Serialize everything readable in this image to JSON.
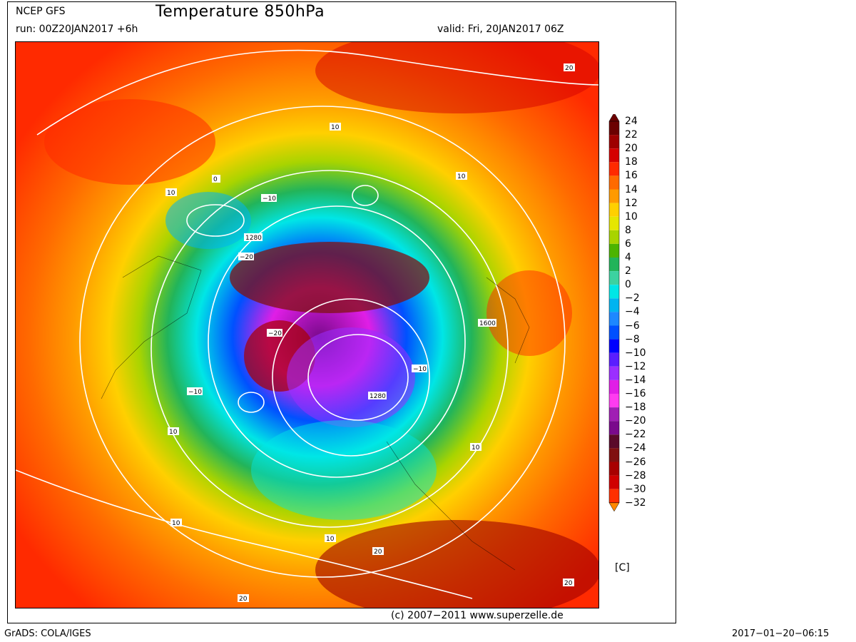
{
  "header": {
    "source": "NCEP GFS",
    "title": "Temperature 850hPa",
    "run": "run: 00Z20JAN2017 +6h",
    "valid": "valid: Fri, 20JAN2017 06Z"
  },
  "legend": {
    "unit": "[C]",
    "entries": [
      {
        "label": "24",
        "color": "#6b0000"
      },
      {
        "label": "22",
        "color": "#9e0000"
      },
      {
        "label": "20",
        "color": "#d40000"
      },
      {
        "label": "18",
        "color": "#ff2a00"
      },
      {
        "label": "16",
        "color": "#ff6a00"
      },
      {
        "label": "14",
        "color": "#ff9a00"
      },
      {
        "label": "12",
        "color": "#ffd000"
      },
      {
        "label": "10",
        "color": "#e6e600"
      },
      {
        "label": "8",
        "color": "#a8d400"
      },
      {
        "label": "6",
        "color": "#4cb400"
      },
      {
        "label": "4",
        "color": "#22b45a"
      },
      {
        "label": "2",
        "color": "#3cd2a0"
      },
      {
        "label": "0",
        "color": "#00e6e6"
      },
      {
        "label": "−2",
        "color": "#00b4f0"
      },
      {
        "label": "−4",
        "color": "#1e88ff"
      },
      {
        "label": "−6",
        "color": "#0050ff"
      },
      {
        "label": "−8",
        "color": "#0000ff"
      },
      {
        "label": "−10",
        "color": "#5a1eff"
      },
      {
        "label": "−12",
        "color": "#9b2eff"
      },
      {
        "label": "−14",
        "color": "#e01ee6"
      },
      {
        "label": "−16",
        "color": "#ff3cf0"
      },
      {
        "label": "−18",
        "color": "#a01eb4"
      },
      {
        "label": "−20",
        "color": "#7a0a8c"
      },
      {
        "label": "−22",
        "color": "#5a0a2a"
      },
      {
        "label": "−24",
        "color": "#801010"
      },
      {
        "label": "−26",
        "color": "#a80000"
      },
      {
        "label": "−28",
        "color": "#d00000"
      },
      {
        "label": "−30",
        "color": "#ff3000"
      },
      {
        "label": "−32",
        "color": "#ff8800"
      }
    ]
  },
  "map": {
    "contour_labels": [
      "10",
      "0",
      "−10",
      "−20",
      "1280",
      "1600",
      "20"
    ]
  },
  "footer": {
    "credit": "(c) 2007−2011 www.superzelle.de",
    "software": "GrADS: COLA/IGES",
    "timestamp": "2017−01−20−06:15"
  }
}
